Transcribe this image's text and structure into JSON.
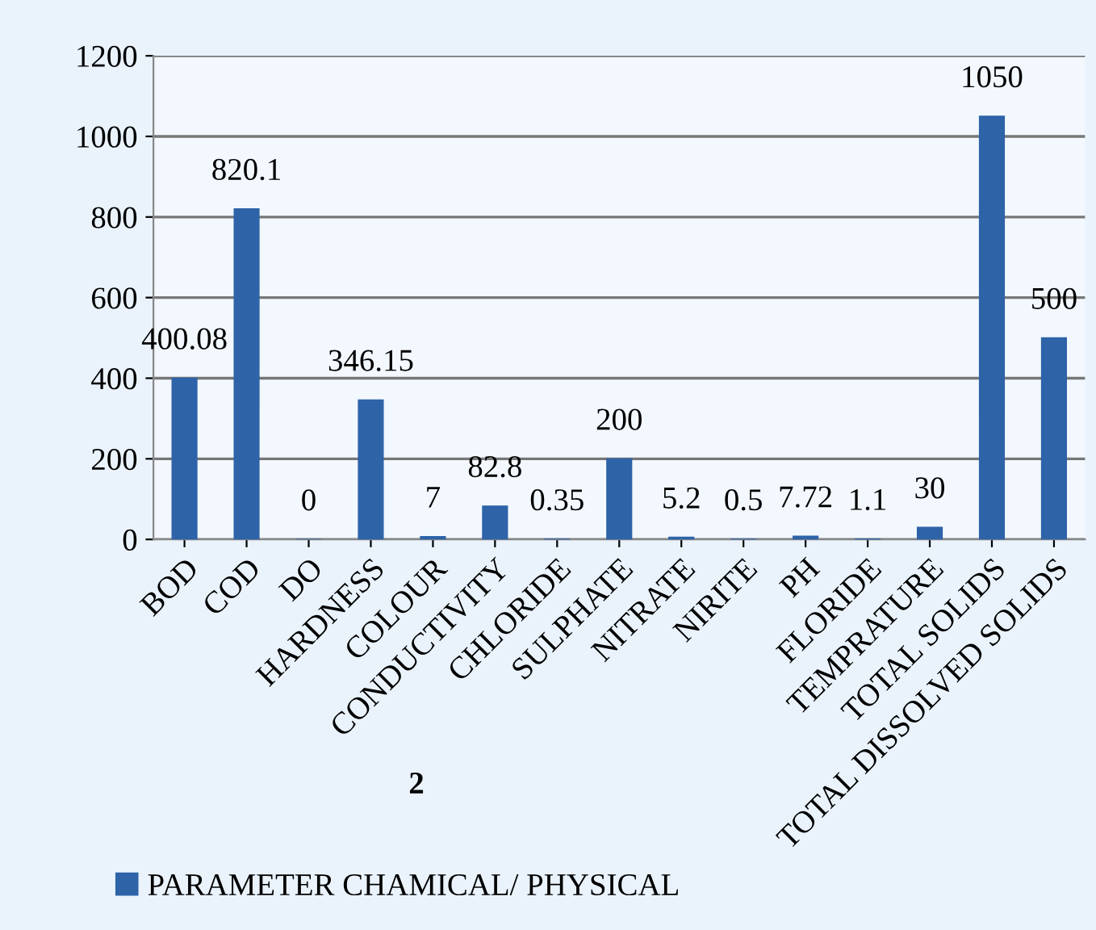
{
  "chart_data": {
    "type": "bar",
    "xlabel": "2",
    "categories": [
      "BOD",
      "COD",
      "DO",
      "HARDNESS",
      "COLOUR",
      "CONDUCTIVITY",
      "CHLORIDE",
      "SULPHATE",
      "NITRATE",
      "NIRITE",
      "PH",
      "FLORIDE",
      "TEMPRATURE",
      "TOTAL SOLIDS",
      "TOTAL DISSOLVED SOLIDS"
    ],
    "series": [
      {
        "name": "PARAMETER CHAMICAL/ PHYSICAL",
        "color": "#2e63a8",
        "values": [
          400.08,
          820.1,
          0,
          346.15,
          7,
          82.8,
          0.35,
          200,
          5.2,
          0.5,
          7.72,
          1.1,
          30,
          1050,
          500
        ]
      }
    ],
    "ylim": [
      0,
      1200
    ],
    "yticks": [
      0,
      200,
      400,
      600,
      800,
      1000,
      1200
    ],
    "grid": "y",
    "legend": "bottom",
    "data_labels": true
  }
}
